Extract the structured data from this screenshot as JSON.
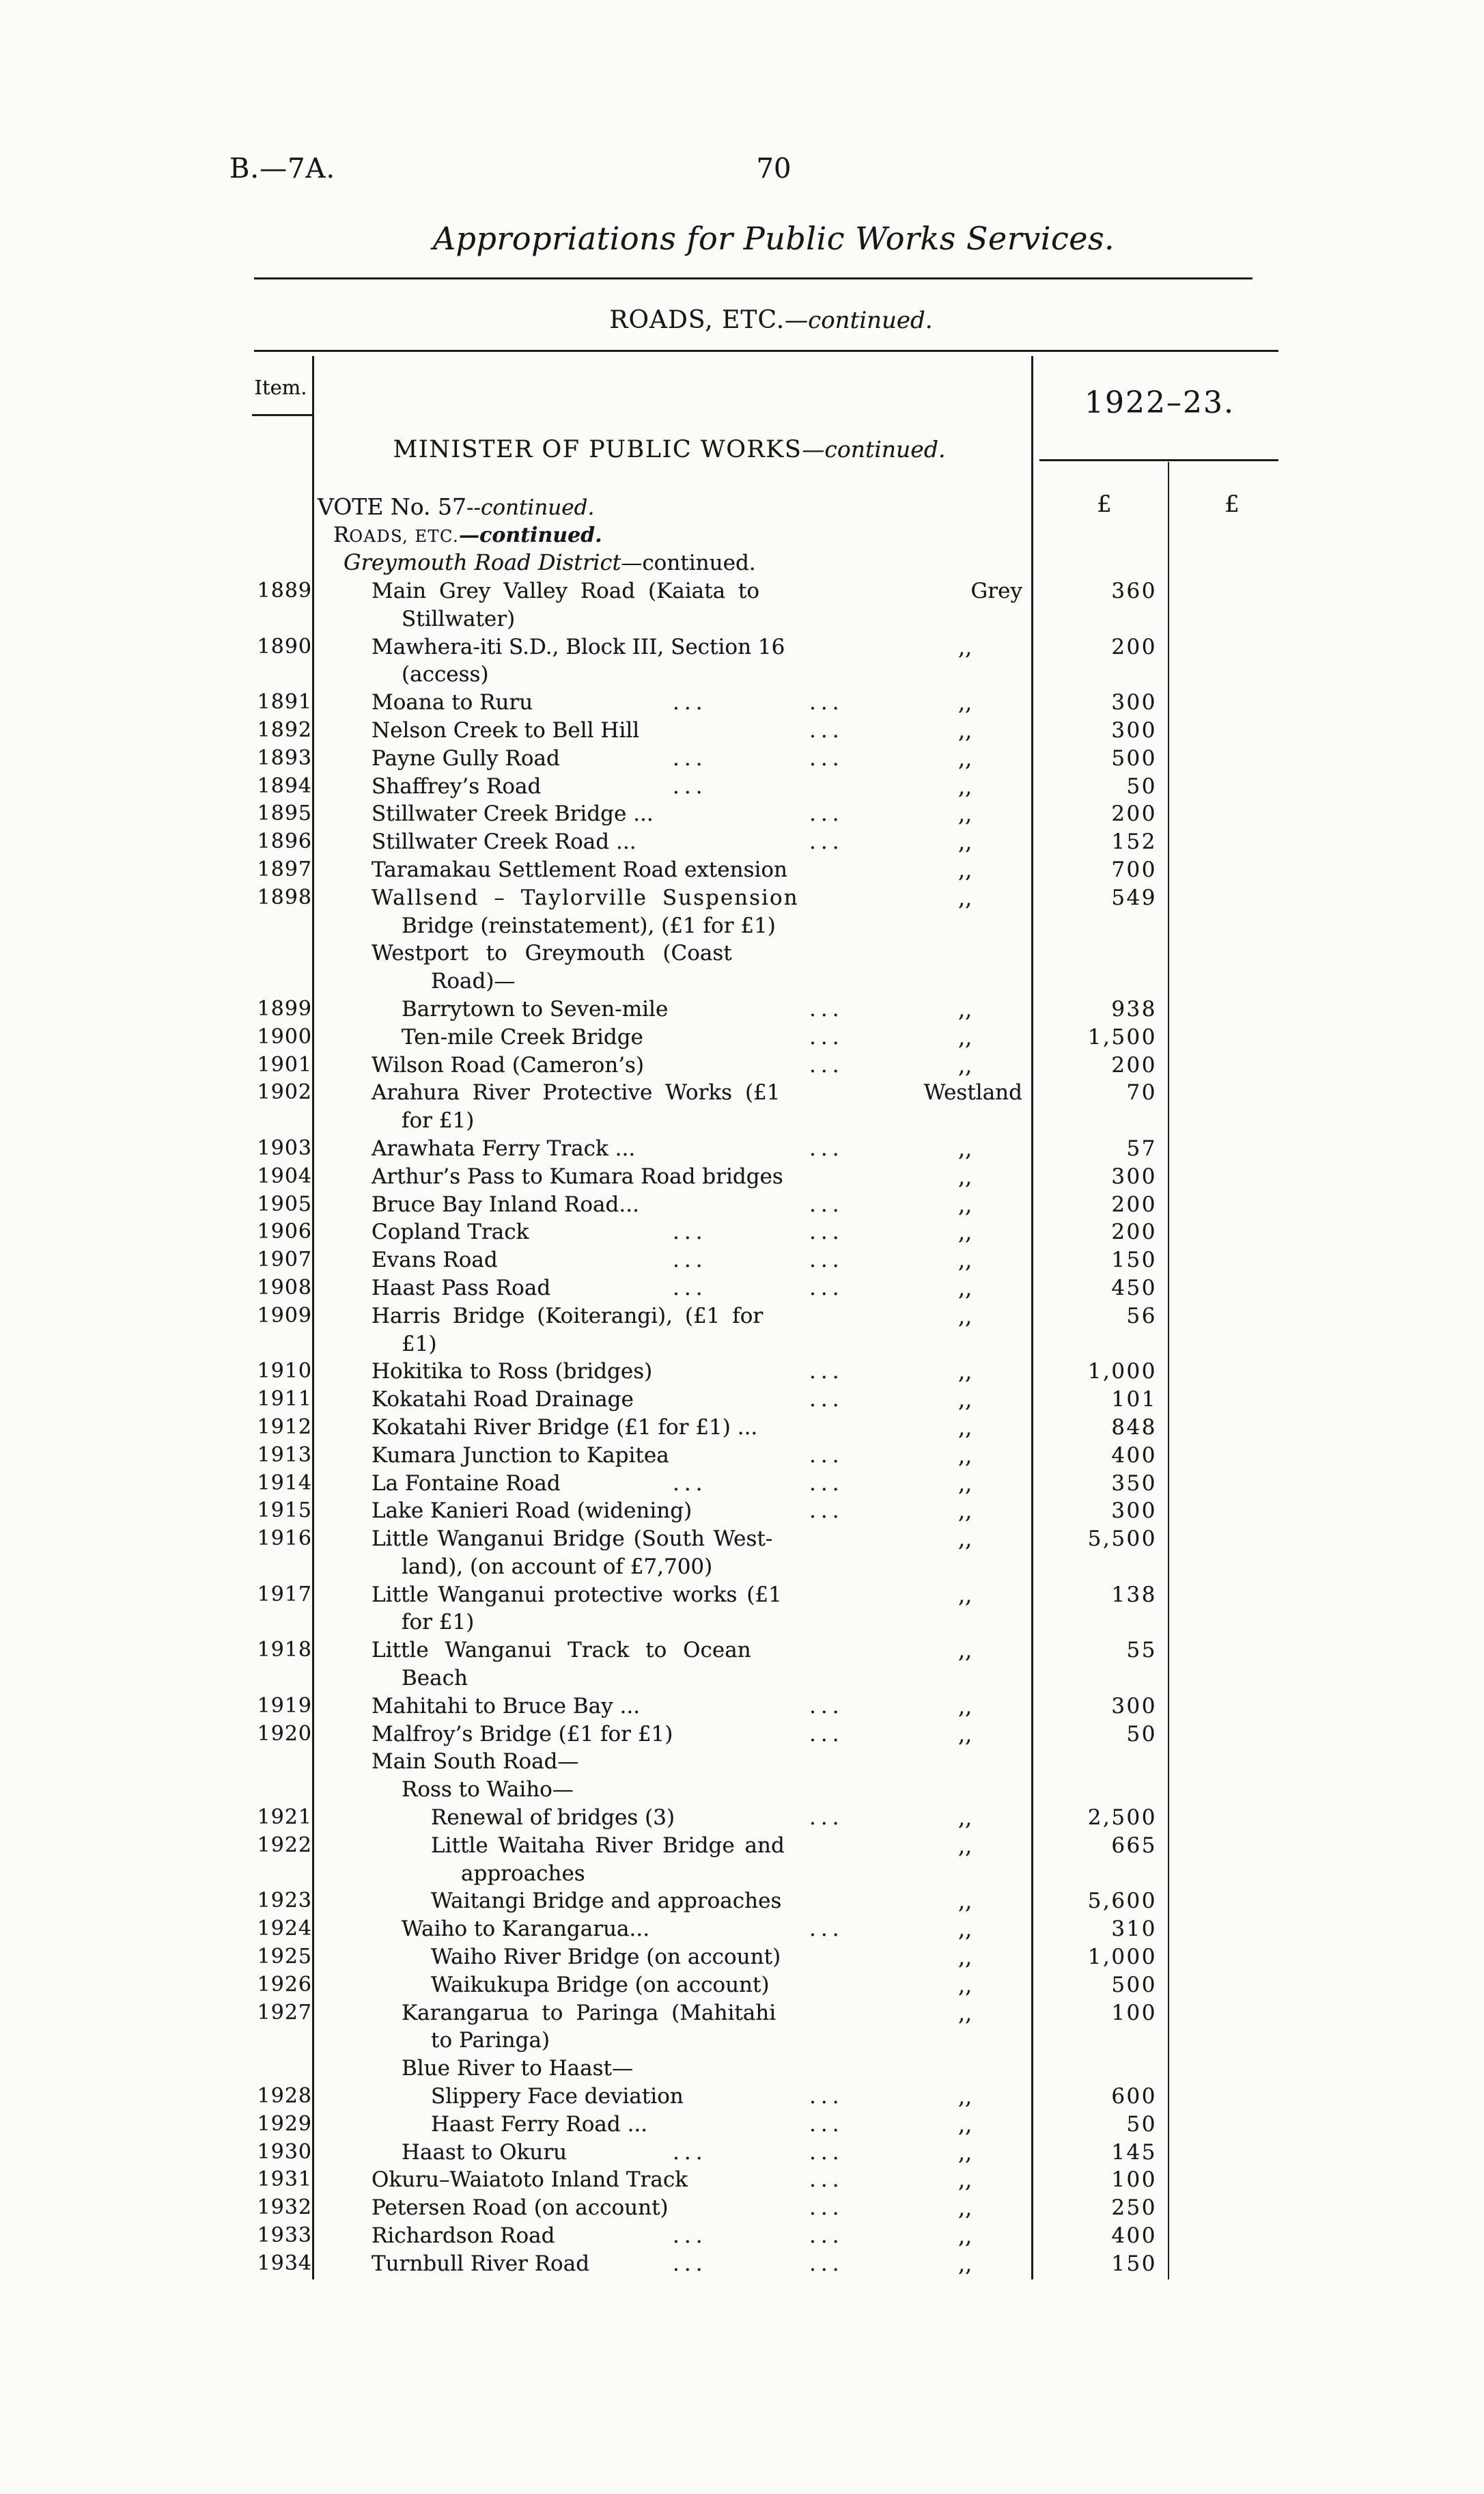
{
  "page": {
    "doc_ref": "B.—7A.",
    "page_number": "70",
    "title": "Appropriations for Public Works Services.",
    "section_heading_caps": "ROADS, ETC.",
    "section_heading_cont": "—continued."
  },
  "table": {
    "item_header": "Item.",
    "year_header": "1922–23.",
    "currency_symbol": "£",
    "minister_heading": "MINISTER OF PUBLIC WORKS",
    "minister_cont": "—continued.",
    "vote_label": "VOTE No. 57",
    "vote_cont": "--continued.",
    "roads_label_initial": "R",
    "roads_label_rest": "OADS, ETC.",
    "roads_cont": "—continued.",
    "district_group_label": "Greymouth Road District",
    "district_group_cont": "—continued.",
    "districts_shown": [
      "Grey",
      "Westland"
    ],
    "ditto_mark": ",,",
    "rows": [
      {
        "t": "item",
        "n": "1889",
        "d": "Main Grey Valley Road (Kaiata to",
        "i": 0,
        "ws": 9,
        "dist": "Grey",
        "amt": "360"
      },
      {
        "t": "cont",
        "d": "Stillwater)",
        "i": 1
      },
      {
        "t": "item",
        "n": "1890",
        "d": "Mawhera-iti S.D., Block III, Section 16",
        "i": 0,
        "dist": ",,",
        "amt": "200"
      },
      {
        "t": "cont",
        "d": "(access)",
        "i": 1
      },
      {
        "t": "item",
        "n": "1891",
        "d": "Moana to Ruru",
        "i": 0,
        "ld": [
          625,
          825
        ],
        "dist": ",,",
        "amt": "300"
      },
      {
        "t": "item",
        "n": "1892",
        "d": "Nelson Creek to Bell Hill",
        "i": 0,
        "ld": [
          825
        ],
        "dist": ",,",
        "amt": "300"
      },
      {
        "t": "item",
        "n": "1893",
        "d": "Payne Gully Road",
        "i": 0,
        "ld": [
          625,
          825
        ],
        "dist": ",,",
        "amt": "500"
      },
      {
        "t": "item",
        "n": "1894",
        "d": "Shaffrey’s Road",
        "i": 0,
        "ld": [
          625
        ],
        "dist": ",,",
        "amt": "50"
      },
      {
        "t": "item",
        "n": "1895",
        "d": "Stillwater Creek Bridge ...",
        "i": 0,
        "ld": [
          825
        ],
        "dist": ",,",
        "amt": "200"
      },
      {
        "t": "item",
        "n": "1896",
        "d": "Stillwater Creek Road  ...",
        "i": 0,
        "ld": [
          825
        ],
        "dist": ",,",
        "amt": "152"
      },
      {
        "t": "item",
        "n": "1897",
        "d": "Taramakau Settlement Road extension",
        "i": 0,
        "dist": ",,",
        "amt": "700"
      },
      {
        "t": "item",
        "n": "1898",
        "d": "Wallsend – Taylorville Suspension",
        "i": 0,
        "ws": 10,
        "ls": 2,
        "dist": ",,",
        "amt": "549"
      },
      {
        "t": "cont",
        "d": "Bridge (reinstatement), (£1 for £1)",
        "i": 1
      },
      {
        "t": "sub",
        "d": "Westport to Greymouth (Coast",
        "i": 0,
        "ws": 16
      },
      {
        "t": "cont",
        "d": "Road)—",
        "i": 2
      },
      {
        "t": "item",
        "n": "1899",
        "d": "Barrytown to Seven-mile",
        "i": 1,
        "ld": [
          825
        ],
        "dist": ",,",
        "amt": "938"
      },
      {
        "t": "item",
        "n": "1900",
        "d": "Ten-mile Creek Bridge",
        "i": 1,
        "ld": [
          825
        ],
        "dist": ",,",
        "amt": "1,500"
      },
      {
        "t": "item",
        "n": "1901",
        "d": "Wilson Road (Cameron’s)",
        "i": 0,
        "ld": [
          825
        ],
        "dist": ",,",
        "amt": "200"
      },
      {
        "t": "item",
        "n": "1902",
        "d": "Arahura River Protective Works (£1",
        "i": 0,
        "ws": 9,
        "dist": "Westland",
        "amt": "70"
      },
      {
        "t": "cont",
        "d": "for £1)",
        "i": 1
      },
      {
        "t": "item",
        "n": "1903",
        "d": "Arawhata Ferry Track ...",
        "i": 0,
        "ld": [
          825
        ],
        "dist": ",,",
        "amt": "57"
      },
      {
        "t": "item",
        "n": "1904",
        "d": "Arthur’s Pass to Kumara Road bridges",
        "i": 0,
        "dist": ",,",
        "amt": "300"
      },
      {
        "t": "item",
        "n": "1905",
        "d": "Bruce Bay Inland Road...",
        "i": 0,
        "ld": [
          825
        ],
        "dist": ",,",
        "amt": "200"
      },
      {
        "t": "item",
        "n": "1906",
        "d": "Copland Track",
        "i": 0,
        "ld": [
          625,
          825
        ],
        "dist": ",,",
        "amt": "200"
      },
      {
        "t": "item",
        "n": "1907",
        "d": "Evans Road",
        "i": 0,
        "ld": [
          625,
          825
        ],
        "dist": ",,",
        "amt": "150"
      },
      {
        "t": "item",
        "n": "1908",
        "d": "Haast Pass Road",
        "i": 0,
        "ld": [
          625,
          825
        ],
        "dist": ",,",
        "amt": "450"
      },
      {
        "t": "item",
        "n": "1909",
        "d": "Harris Bridge (Koiterangi), (£1 for",
        "i": 0,
        "ws": 8,
        "dist": ",,",
        "amt": "56"
      },
      {
        "t": "cont",
        "d": "£1)",
        "i": 1
      },
      {
        "t": "item",
        "n": "1910",
        "d": "Hokitika to Ross (bridges)",
        "i": 0,
        "ld": [
          825
        ],
        "dist": ",,",
        "amt": "1,000"
      },
      {
        "t": "item",
        "n": "1911",
        "d": "Kokatahi Road Drainage",
        "i": 0,
        "ld": [
          825
        ],
        "dist": ",,",
        "amt": "101"
      },
      {
        "t": "item",
        "n": "1912",
        "d": "Kokatahi River Bridge (£1 for £1) ...",
        "i": 0,
        "dist": ",,",
        "amt": "848"
      },
      {
        "t": "item",
        "n": "1913",
        "d": "Kumara Junction to Kapitea",
        "i": 0,
        "ld": [
          825
        ],
        "dist": ",,",
        "amt": "400"
      },
      {
        "t": "item",
        "n": "1914",
        "d": "La Fontaine Road",
        "i": 0,
        "ld": [
          625,
          825
        ],
        "dist": ",,",
        "amt": "350"
      },
      {
        "t": "item",
        "n": "1915",
        "d": "Lake Kanieri Road (widening)",
        "i": 0,
        "ld": [
          825
        ],
        "dist": ",,",
        "amt": "300"
      },
      {
        "t": "item",
        "n": "1916",
        "d": "Little Wanganui Bridge (South West-",
        "i": 0,
        "ws": 3,
        "dist": ",,",
        "amt": "5,500"
      },
      {
        "t": "cont",
        "d": "land), (on account of £7,700)",
        "i": 1
      },
      {
        "t": "item",
        "n": "1917",
        "d": "Little Wanganui protective works (£1",
        "i": 0,
        "ws": 4,
        "dist": ",,",
        "amt": "138"
      },
      {
        "t": "cont",
        "d": "for £1)",
        "i": 1
      },
      {
        "t": "item",
        "n": "1918",
        "d": "Little Wanganui Track to Ocean",
        "i": 0,
        "ws": 14,
        "dist": ",,",
        "amt": "55"
      },
      {
        "t": "cont",
        "d": "Beach",
        "i": 1
      },
      {
        "t": "item",
        "n": "1919",
        "d": "Mahitahi to Bruce Bay ...",
        "i": 0,
        "ld": [
          825
        ],
        "dist": ",,",
        "amt": "300"
      },
      {
        "t": "item",
        "n": "1920",
        "d": "Malfroy’s Bridge (£1 for £1)",
        "i": 0,
        "ld": [
          825
        ],
        "dist": ",,",
        "amt": "50"
      },
      {
        "t": "sub",
        "d": "Main South Road—",
        "i": 0
      },
      {
        "t": "sub",
        "d": "Ross to Waiho—",
        "i": 1
      },
      {
        "t": "item",
        "n": "1921",
        "d": "Renewal of bridges (3)",
        "i": 2,
        "ld": [
          825
        ],
        "dist": ",,",
        "amt": "2,500"
      },
      {
        "t": "item",
        "n": "1922",
        "d": "Little Waitaha River Bridge and",
        "i": 2,
        "ws": 5,
        "dist": ",,",
        "amt": "665"
      },
      {
        "t": "cont",
        "d": "approaches",
        "i": 3
      },
      {
        "t": "item",
        "n": "1923",
        "d": "Waitangi Bridge and approaches",
        "i": 2,
        "dist": ",,",
        "amt": "5,600"
      },
      {
        "t": "item",
        "n": "1924",
        "d": "Waiho to Karangarua...",
        "i": 1,
        "ld": [
          825
        ],
        "dist": ",,",
        "amt": "310"
      },
      {
        "t": "item",
        "n": "1925",
        "d": "Waiho River Bridge (on account)",
        "i": 2,
        "dist": ",,",
        "amt": "1,000"
      },
      {
        "t": "item",
        "n": "1926",
        "d": "Waikukupa Bridge (on account)",
        "i": 2,
        "dist": ",,",
        "amt": "500"
      },
      {
        "t": "item",
        "n": "1927",
        "d": "Karangarua to Paringa (Mahitahi",
        "i": 1,
        "ws": 9,
        "dist": ",,",
        "amt": "100"
      },
      {
        "t": "cont",
        "d": "to Paringa)",
        "i": 2
      },
      {
        "t": "sub",
        "d": "Blue River to Haast—",
        "i": 1
      },
      {
        "t": "item",
        "n": "1928",
        "d": "Slippery Face deviation",
        "i": 2,
        "ld": [
          825
        ],
        "dist": ",,",
        "amt": "600"
      },
      {
        "t": "item",
        "n": "1929",
        "d": "Haast Ferry Road ...",
        "i": 2,
        "ld": [
          825
        ],
        "dist": ",,",
        "amt": "50"
      },
      {
        "t": "item",
        "n": "1930",
        "d": "Haast to Okuru",
        "i": 1,
        "ld": [
          625,
          825
        ],
        "dist": ",,",
        "amt": "145"
      },
      {
        "t": "item",
        "n": "1931",
        "d": "Okuru–Waiatoto Inland Track",
        "i": 0,
        "ld": [
          825
        ],
        "dist": ",,",
        "amt": "100"
      },
      {
        "t": "item",
        "n": "1932",
        "d": "Petersen Road (on account)",
        "i": 0,
        "ld": [
          825
        ],
        "dist": ",,",
        "amt": "250"
      },
      {
        "t": "item",
        "n": "1933",
        "d": "Richardson Road",
        "i": 0,
        "ld": [
          625,
          825
        ],
        "dist": ",,",
        "amt": "400"
      },
      {
        "t": "item",
        "n": "1934",
        "d": "Turnbull River Road",
        "i": 0,
        "ld": [
          625,
          825
        ],
        "dist": ",,",
        "amt": "150"
      }
    ]
  }
}
